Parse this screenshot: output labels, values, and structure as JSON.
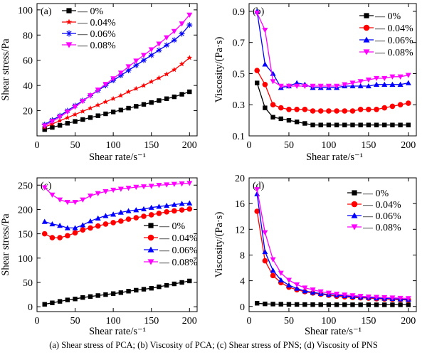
{
  "caption": "(a) Shear stress of PCA; (b) Viscosity of PCA; (c) Shear stress of PNS; (d) Viscosity of PNS",
  "series_style": [
    {
      "name": "0%",
      "color": "#000000",
      "marker": "square"
    },
    {
      "name": "0.04%",
      "color": "#ff0000",
      "marker": "star"
    },
    {
      "name": "0.06%",
      "color": "#0000ff",
      "marker": "asterisk"
    },
    {
      "name": "0.08%",
      "color": "#ff00ff",
      "marker": "triangle-down"
    }
  ],
  "chart_data": [
    {
      "panel": "(a)",
      "type": "line",
      "xlabel": "Shear rate/s⁻¹",
      "ylabel": "Shear stress/Pa",
      "xlim": [
        0,
        210
      ],
      "ylim": [
        0,
        105
      ],
      "xticks": [
        0,
        50,
        100,
        150,
        200
      ],
      "yticks": [
        20,
        40,
        60,
        80,
        100
      ],
      "legend_position": "top-left",
      "markers": [
        "square",
        "star",
        "asterisk",
        "triangle-down"
      ],
      "line_style": "solid line through markers",
      "x": [
        10,
        20,
        30,
        40,
        50,
        60,
        70,
        80,
        90,
        100,
        110,
        120,
        130,
        140,
        150,
        160,
        170,
        180,
        190,
        200
      ],
      "series": [
        {
          "name": "0%",
          "color": "#000000",
          "values": [
            5,
            6.7,
            8.3,
            10,
            11.5,
            13,
            14.5,
            16,
            17.5,
            19,
            20.5,
            22,
            23.5,
            25,
            26.5,
            28,
            29.5,
            31,
            33,
            35
          ]
        },
        {
          "name": "0.04%",
          "color": "#ff0000",
          "values": [
            7,
            9.5,
            12,
            14.5,
            17,
            19.5,
            22,
            24.5,
            27,
            29.5,
            32,
            35,
            37.5,
            40,
            43,
            46,
            49,
            52.5,
            57,
            62
          ]
        },
        {
          "name": "0.06%",
          "color": "#0000ff",
          "values": [
            9,
            12.5,
            16,
            20,
            24,
            28,
            32,
            36,
            40,
            44,
            48,
            52,
            56,
            60,
            64,
            68,
            72,
            76,
            81,
            88
          ]
        },
        {
          "name": "0.08%",
          "color": "#ff00ff",
          "values": [
            8,
            11.5,
            15,
            19,
            23,
            27.5,
            32,
            36.5,
            41,
            45.5,
            50,
            55,
            59.5,
            64,
            68.5,
            73,
            78,
            83,
            89,
            96
          ]
        }
      ]
    },
    {
      "panel": "(b)",
      "type": "line",
      "xlabel": "Shear rate/s⁻¹",
      "ylabel": "Viscosity/(Pa·s)",
      "xlim": [
        0,
        210
      ],
      "ylim": [
        0.1,
        0.95
      ],
      "xticks": [
        0,
        50,
        100,
        150,
        200
      ],
      "yticks": [
        0.1,
        0.3,
        0.5,
        0.7,
        0.9
      ],
      "legend_position": "top-right",
      "markers": [
        "square",
        "circle",
        "triangle-up",
        "triangle-down"
      ],
      "line_style": "solid line through markers",
      "x": [
        10,
        20,
        30,
        40,
        50,
        60,
        70,
        80,
        90,
        100,
        110,
        120,
        130,
        140,
        150,
        160,
        170,
        180,
        190,
        200
      ],
      "series": [
        {
          "name": "0%",
          "color": "#000000",
          "values": [
            0.44,
            0.28,
            0.22,
            0.21,
            0.2,
            0.19,
            0.18,
            0.17,
            0.17,
            0.17,
            0.17,
            0.17,
            0.17,
            0.17,
            0.17,
            0.17,
            0.17,
            0.17,
            0.17,
            0.17
          ]
        },
        {
          "name": "0.04%",
          "color": "#ff0000",
          "values": [
            0.52,
            0.43,
            0.3,
            0.28,
            0.27,
            0.27,
            0.27,
            0.26,
            0.26,
            0.26,
            0.26,
            0.26,
            0.26,
            0.27,
            0.27,
            0.27,
            0.28,
            0.29,
            0.3,
            0.31
          ]
        },
        {
          "name": "0.06%",
          "color": "#0000ff",
          "values": [
            0.9,
            0.56,
            0.5,
            0.41,
            0.42,
            0.44,
            0.43,
            0.41,
            0.41,
            0.41,
            0.41,
            0.42,
            0.42,
            0.42,
            0.42,
            0.43,
            0.43,
            0.43,
            0.43,
            0.44
          ]
        },
        {
          "name": "0.08%",
          "color": "#ff00ff",
          "values": [
            0.89,
            0.78,
            0.45,
            0.42,
            0.42,
            0.42,
            0.42,
            0.42,
            0.42,
            0.42,
            0.42,
            0.43,
            0.44,
            0.45,
            0.46,
            0.47,
            0.47,
            0.48,
            0.48,
            0.49
          ]
        }
      ]
    },
    {
      "panel": "(c)",
      "type": "line",
      "xlabel": "Shear rate/s⁻¹",
      "ylabel": "Shear stress/Pa",
      "xlim": [
        0,
        210
      ],
      "ylim": [
        -10,
        265
      ],
      "xticks": [
        0,
        50,
        100,
        150,
        200
      ],
      "yticks": [
        0,
        50,
        100,
        150,
        200,
        250
      ],
      "legend_position": "center-right",
      "markers": [
        "square",
        "circle",
        "triangle-up",
        "triangle-down"
      ],
      "line_style": "solid line through markers",
      "x": [
        10,
        20,
        30,
        40,
        50,
        60,
        70,
        80,
        90,
        100,
        110,
        120,
        130,
        140,
        150,
        160,
        170,
        180,
        190,
        200
      ],
      "series": [
        {
          "name": "0%",
          "color": "#000000",
          "values": [
            5,
            8,
            11,
            14,
            16,
            19,
            21,
            23,
            25,
            27,
            29,
            32,
            34,
            36,
            38,
            41,
            44,
            47,
            50,
            53
          ]
        },
        {
          "name": "0.04%",
          "color": "#ff0000",
          "values": [
            150,
            142,
            142,
            146,
            152,
            158,
            162,
            166,
            170,
            173,
            176,
            180,
            183,
            186,
            189,
            192,
            195,
            197,
            199,
            201
          ]
        },
        {
          "name": "0.06%",
          "color": "#0000ff",
          "values": [
            175,
            170,
            167,
            162,
            162,
            168,
            176,
            182,
            187,
            190,
            194,
            197,
            199,
            201,
            204,
            206,
            208,
            210,
            212,
            213
          ]
        },
        {
          "name": "0.08%",
          "color": "#ff00ff",
          "values": [
            245,
            230,
            220,
            215,
            215,
            220,
            228,
            233,
            237,
            240,
            242,
            244,
            246,
            247,
            248,
            250,
            251,
            252,
            253,
            254
          ]
        }
      ]
    },
    {
      "panel": "(d)",
      "type": "line",
      "xlabel": "Shear rate/s⁻¹",
      "ylabel": "Viscosity/(Pa·s)",
      "xlim": [
        0,
        210
      ],
      "ylim": [
        -0.8,
        20
      ],
      "xticks": [
        0,
        50,
        100,
        150,
        200
      ],
      "yticks": [
        0,
        4,
        8,
        12,
        16,
        20
      ],
      "legend_position": "top-right",
      "markers": [
        "square",
        "circle",
        "triangle-up",
        "triangle-down"
      ],
      "line_style": "solid line through markers",
      "x": [
        10,
        20,
        30,
        40,
        50,
        60,
        70,
        80,
        90,
        100,
        110,
        120,
        130,
        140,
        150,
        160,
        170,
        180,
        190,
        200
      ],
      "series": [
        {
          "name": "0%",
          "color": "#000000",
          "values": [
            0.5,
            0.4,
            0.37,
            0.35,
            0.33,
            0.31,
            0.3,
            0.29,
            0.28,
            0.27,
            0.27,
            0.27,
            0.27,
            0.26,
            0.26,
            0.26,
            0.26,
            0.26,
            0.26,
            0.26
          ]
        },
        {
          "name": "0.04%",
          "color": "#ff0000",
          "values": [
            14.8,
            7.1,
            4.8,
            3.7,
            3.0,
            2.6,
            2.3,
            2.1,
            1.9,
            1.75,
            1.6,
            1.5,
            1.4,
            1.35,
            1.3,
            1.2,
            1.15,
            1.1,
            1.05,
            1.0
          ]
        },
        {
          "name": "0.06%",
          "color": "#0000ff",
          "values": [
            17.5,
            8.5,
            5.6,
            4.1,
            3.3,
            2.8,
            2.4,
            2.2,
            2.0,
            1.85,
            1.75,
            1.65,
            1.55,
            1.45,
            1.4,
            1.3,
            1.25,
            1.2,
            1.15,
            1.1
          ]
        },
        {
          "name": "0.08%",
          "color": "#ff00ff",
          "values": [
            18.2,
            11.5,
            7.3,
            5.2,
            4.1,
            3.4,
            2.9,
            2.6,
            2.3,
            2.1,
            1.95,
            1.8,
            1.7,
            1.6,
            1.5,
            1.45,
            1.4,
            1.35,
            1.3,
            1.25
          ]
        }
      ]
    }
  ]
}
